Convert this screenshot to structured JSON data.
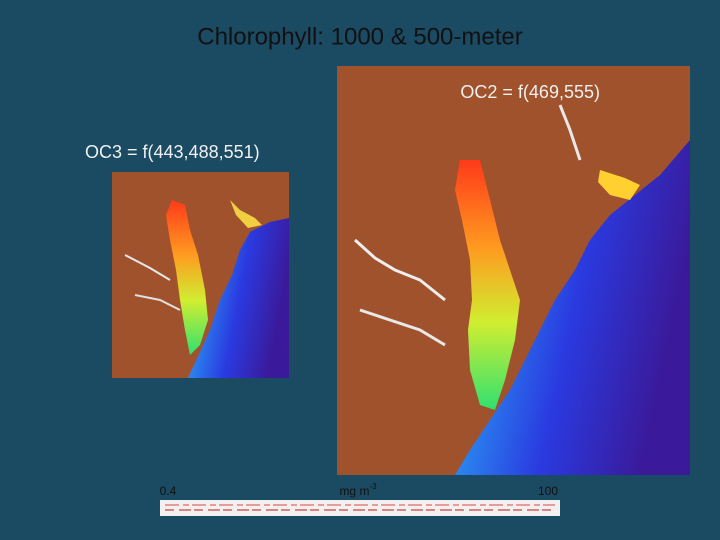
{
  "title": "Chlorophyll: 1000 & 500-meter",
  "panels": [
    {
      "label": "OC3 = f(443,488,551)"
    },
    {
      "label": "OC2 = f(469,555)"
    }
  ],
  "colorbar": {
    "min_label": "0.4",
    "unit": {
      "base": "mg m",
      "superscript": "-3"
    },
    "max_label": "100"
  }
}
